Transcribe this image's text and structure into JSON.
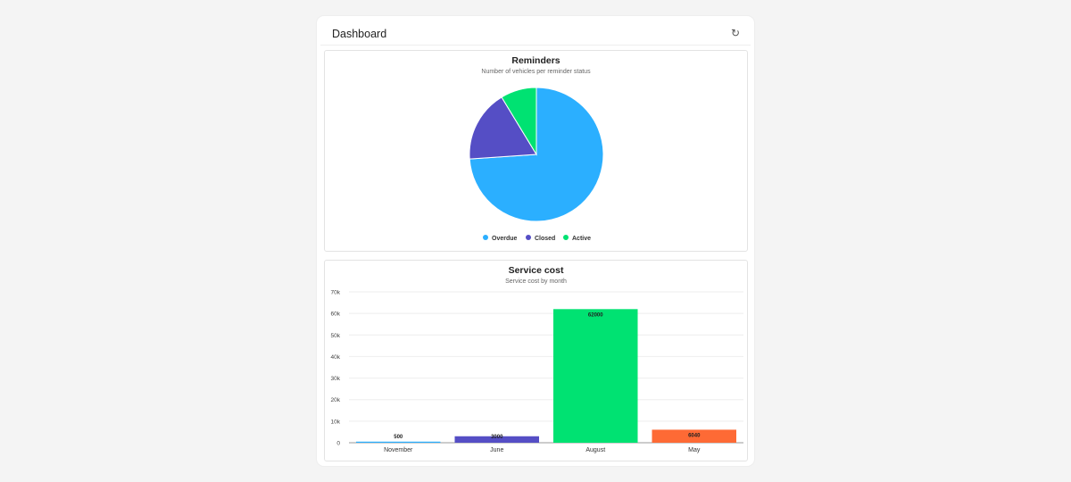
{
  "header": {
    "title": "Dashboard",
    "refresh_icon": "refresh-icon"
  },
  "chart_data": [
    {
      "type": "pie",
      "title": "Reminders",
      "subtitle": "Number of vehicles per reminder status",
      "categories": [
        "Overdue",
        "Closed",
        "Active"
      ],
      "values": [
        17,
        4,
        2
      ],
      "colors": [
        "#2bafff",
        "#554ec5",
        "#00e272"
      ],
      "legend": "bottom"
    },
    {
      "type": "bar",
      "title": "Service cost",
      "subtitle": "Service cost by month",
      "categories": [
        "November",
        "June",
        "August",
        "May"
      ],
      "values": [
        500,
        3000,
        62000,
        6040
      ],
      "data_labels": [
        "500",
        "3000",
        "62000",
        "6040"
      ],
      "colors": [
        "#2bafff",
        "#554ec5",
        "#00e272",
        "#fe6a35"
      ],
      "yticks": [
        "0",
        "10k",
        "20k",
        "30k",
        "40k",
        "50k",
        "60k",
        "70k"
      ],
      "ylim": [
        0,
        70000
      ],
      "grid": true
    }
  ]
}
